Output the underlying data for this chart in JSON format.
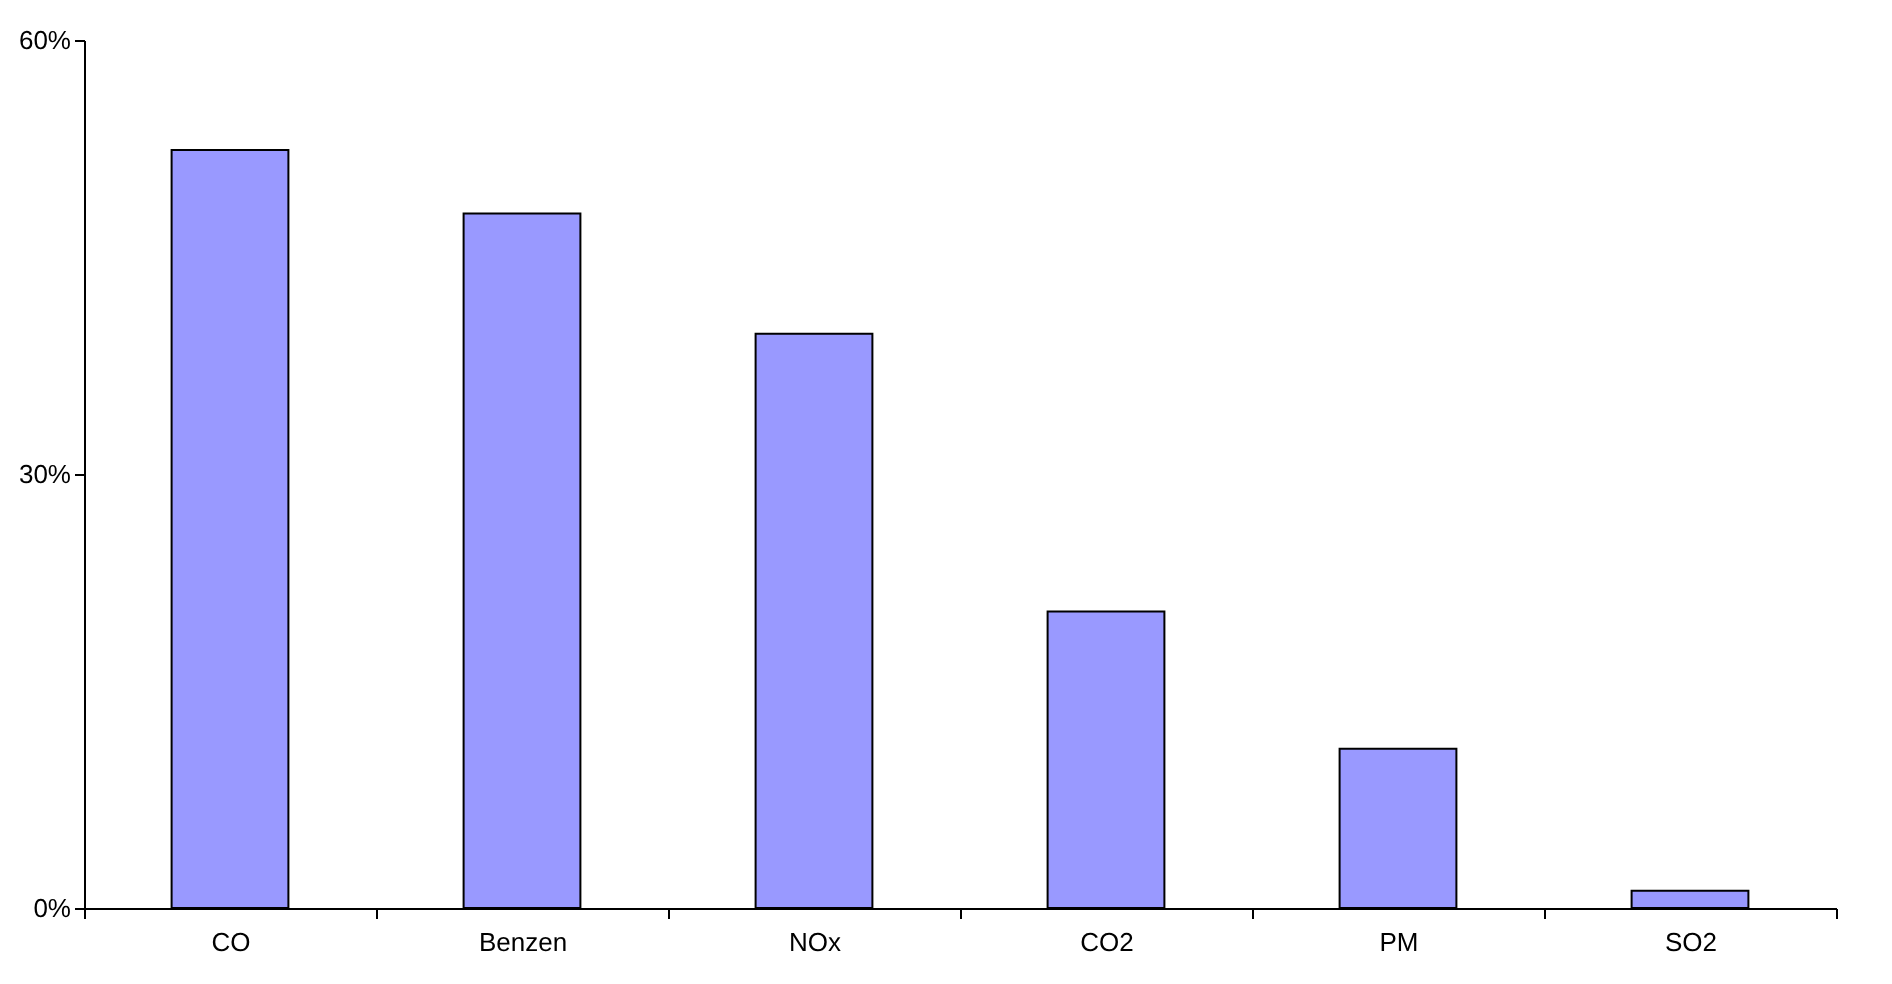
{
  "chart_data": {
    "type": "bar",
    "categories": [
      "CO",
      "Benzen",
      "NOx",
      "CO2",
      "PM",
      "SO2"
    ],
    "values": [
      52.4,
      48,
      39.7,
      20.5,
      11,
      1.2
    ],
    "color": "#9999ff",
    "ylim": [
      0,
      60
    ],
    "yticks": [
      {
        "value": 0,
        "label": "0%"
      },
      {
        "value": 30,
        "label": "30%"
      },
      {
        "value": 60,
        "label": "60%"
      }
    ],
    "grid": false
  }
}
